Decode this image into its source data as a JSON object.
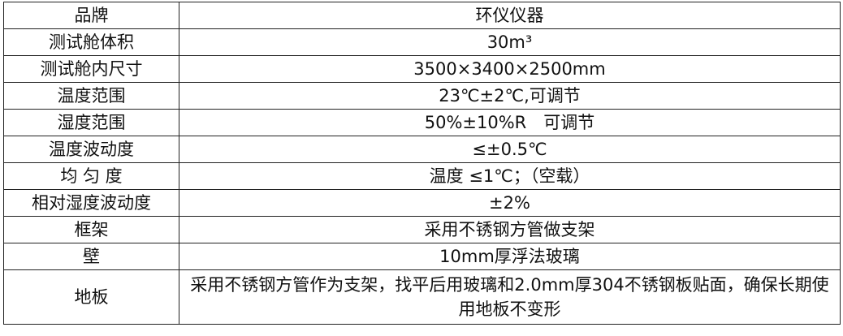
{
  "rows": [
    {
      "label": "品牌",
      "value": "环仪仪器"
    },
    {
      "label": "测试舱体积",
      "value": "30m³"
    },
    {
      "label": "测试舱内尺寸",
      "value": "3500×3400×2500mm"
    },
    {
      "label": "温度范围",
      "value": "23℃±2℃,可调节"
    },
    {
      "label": "湿度范围",
      "value": "50%±10%R　可调节"
    },
    {
      "label": "温度波动度",
      "value": "≤±0.5℃"
    },
    {
      "label": "均 匀 度",
      "value": "温度 ≤1℃；（空载）"
    },
    {
      "label": "相对湿度波动度",
      "value": "±2%"
    },
    {
      "label": "框架",
      "value": "采用不锈钢方管做支架"
    },
    {
      "label": "壁",
      "value": "10mm厚浮法玻璃"
    },
    {
      "label": "地板",
      "value": "采用不锈钢方管作为支架，找平后用玻璃和2.0mm厚304不锈钢板贴面，确保长期使用地板不变形"
    }
  ]
}
